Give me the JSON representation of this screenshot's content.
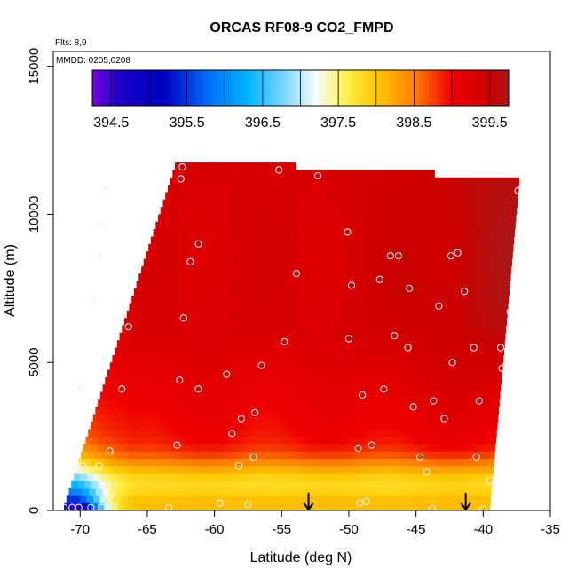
{
  "chart_data": {
    "type": "heatmap",
    "title": "ORCAS RF08-9 CO2_FMPD",
    "flights_note": "Flts: 8,9",
    "date_note": "MMDD: 0205,0208",
    "xlabel": "Latitude (deg N)",
    "ylabel": "Altitude (m)",
    "xlim": [
      -72,
      -35
    ],
    "ylim": [
      0,
      15500
    ],
    "x_ticks": [
      -70,
      -65,
      -60,
      -55,
      -50,
      -45,
      -40,
      -35
    ],
    "x_tick_labels": [
      "-70",
      "-65",
      "-60",
      "-55",
      "-50",
      "-45",
      "-40",
      "-35"
    ],
    "y_ticks": [
      0,
      5000,
      10000,
      15000
    ],
    "y_tick_labels": [
      "0",
      "5000",
      "10000",
      "15000"
    ],
    "colorbar": {
      "min": 394.25,
      "max": 399.75,
      "ticks": [
        394.5,
        395.5,
        396.5,
        397.5,
        398.5,
        399.5
      ],
      "tick_labels": [
        "394.5",
        "395.5",
        "396.5",
        "397.5",
        "398.5",
        "399.5"
      ],
      "stops": [
        {
          "v": 394.25,
          "c": "#7a00e6"
        },
        {
          "v": 394.6,
          "c": "#1a00c8"
        },
        {
          "v": 395.2,
          "c": "#0000c0"
        },
        {
          "v": 395.8,
          "c": "#0070ff"
        },
        {
          "v": 396.3,
          "c": "#00b4ff"
        },
        {
          "v": 396.8,
          "c": "#80d8ff"
        },
        {
          "v": 397.2,
          "c": "#f4fcff"
        },
        {
          "v": 397.6,
          "c": "#fff04a"
        },
        {
          "v": 398.0,
          "c": "#ffc800"
        },
        {
          "v": 398.5,
          "c": "#ff8000"
        },
        {
          "v": 399.0,
          "c": "#f00000"
        },
        {
          "v": 399.5,
          "c": "#cc0000"
        },
        {
          "v": 399.75,
          "c": "#a81818"
        }
      ]
    },
    "coverage": {
      "lat_left_bottom": -71.2,
      "lat_left_top": -62.8,
      "lat_right_bottom": -39.5,
      "lat_right_top": -37.3,
      "alt_top_left": 11700,
      "alt_top_right": 11100
    },
    "sample_points": [
      [
        -71.2,
        100
      ],
      [
        -70.6,
        100
      ],
      [
        -70.1,
        100
      ],
      [
        -69.2,
        100
      ],
      [
        -68.4,
        100
      ],
      [
        -63.4,
        100
      ],
      [
        -59.6,
        250
      ],
      [
        -57.5,
        200
      ],
      [
        -49.2,
        250
      ],
      [
        -48.7,
        300
      ],
      [
        -43.8,
        60
      ],
      [
        -40.0,
        40
      ],
      [
        -38.6,
        2900
      ],
      [
        -71.0,
        1100
      ],
      [
        -70.3,
        1500
      ],
      [
        -69.8,
        1500
      ],
      [
        -68.6,
        1500
      ],
      [
        -67.8,
        2000
      ],
      [
        -70.5,
        1900
      ],
      [
        -70.2,
        2100
      ],
      [
        -62.8,
        2200
      ],
      [
        -58.2,
        1500
      ],
      [
        -57.1,
        1800
      ],
      [
        -49.3,
        2100
      ],
      [
        -48.3,
        2200
      ],
      [
        -44.7,
        1800
      ],
      [
        -44.2,
        1300
      ],
      [
        -40.5,
        1800
      ],
      [
        -39.5,
        1000
      ],
      [
        -69.9,
        4100
      ],
      [
        -70.1,
        4200
      ],
      [
        -66.9,
        4100
      ],
      [
        -62.6,
        4400
      ],
      [
        -61.2,
        4100
      ],
      [
        -59.1,
        4600
      ],
      [
        -58.0,
        3100
      ],
      [
        -58.7,
        2600
      ],
      [
        -57.0,
        3300
      ],
      [
        -56.5,
        4900
      ],
      [
        -49.0,
        3900
      ],
      [
        -47.4,
        4100
      ],
      [
        -45.2,
        3500
      ],
      [
        -43.7,
        3700
      ],
      [
        -42.9,
        3100
      ],
      [
        -42.3,
        5000
      ],
      [
        -40.3,
        3700
      ],
      [
        -38.6,
        4800
      ],
      [
        -69.1,
        7100
      ],
      [
        -66.4,
        6200
      ],
      [
        -62.3,
        6500
      ],
      [
        -54.8,
        5700
      ],
      [
        -50.0,
        5800
      ],
      [
        -46.6,
        5900
      ],
      [
        -45.6,
        5500
      ],
      [
        -40.7,
        5500
      ],
      [
        -38.0,
        6700
      ],
      [
        -38.7,
        5500
      ],
      [
        -68.7,
        8600
      ],
      [
        -68.4,
        9600
      ],
      [
        -68.2,
        10800
      ],
      [
        -65.7,
        8200
      ],
      [
        -61.8,
        8400
      ],
      [
        -61.2,
        9000
      ],
      [
        -62.5,
        11200
      ],
      [
        -62.4,
        11600
      ],
      [
        -55.2,
        11500
      ],
      [
        -52.3,
        11300
      ],
      [
        -53.9,
        8000
      ],
      [
        -50.1,
        9400
      ],
      [
        -49.8,
        7600
      ],
      [
        -47.7,
        7800
      ],
      [
        -46.9,
        8600
      ],
      [
        -46.3,
        8600
      ],
      [
        -45.5,
        7500
      ],
      [
        -43.3,
        6900
      ],
      [
        -42.4,
        8600
      ],
      [
        -41.9,
        8700
      ],
      [
        -41.4,
        7400
      ],
      [
        -37.4,
        10800
      ],
      [
        -37.3,
        9200
      ]
    ],
    "markers": {
      "type": "down-arrow",
      "lat": [
        -53.0,
        -41.3
      ],
      "alt_top": 600
    }
  }
}
